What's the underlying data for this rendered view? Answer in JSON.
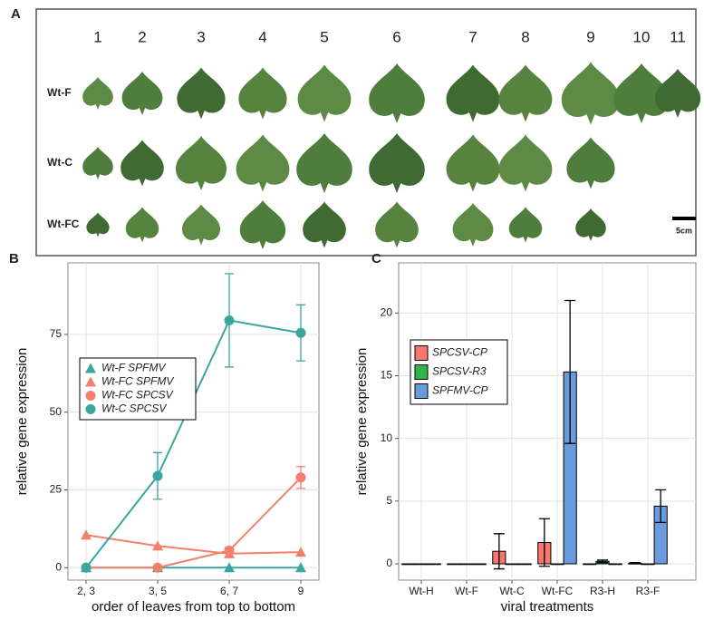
{
  "panel_a": {
    "label": "A",
    "columns": [
      "1",
      "2",
      "3",
      "4",
      "5",
      "6",
      "7",
      "8",
      "9",
      "10",
      "11"
    ],
    "rows": [
      "Wt-F",
      "Wt-C",
      "Wt-FC"
    ],
    "scale": "5cm"
  },
  "chart_data": [
    {
      "type": "line",
      "panel_label": "B",
      "x_label": "order of leaves from top to bottom",
      "y_label": "relative gene expression",
      "categories": [
        "2, 3",
        "3, 5",
        "6, 7",
        "9"
      ],
      "ylim": [
        -4,
        98
      ],
      "yticks": [
        0,
        25,
        50,
        75
      ],
      "grid": true,
      "legend": "upper-left",
      "series": [
        {
          "name": "Wt-F SPFMV",
          "color": "#3aa6a0",
          "marker": "triangle",
          "values": [
            0,
            0,
            0,
            0
          ]
        },
        {
          "name": "Wt-FC SPFMV",
          "color": "#f47f6b",
          "marker": "triangle",
          "values": [
            10.5,
            7,
            4.5,
            5
          ]
        },
        {
          "name": "Wt-FC SPCSV",
          "color": "#f47f6b",
          "marker": "circle",
          "values": [
            0,
            0,
            5.5,
            29
          ],
          "errors": [
            null,
            null,
            1,
            3.5
          ]
        },
        {
          "name": "Wt-C SPCSV",
          "color": "#3aa6a0",
          "marker": "circle",
          "values": [
            0,
            29.5,
            79.5,
            75.5
          ],
          "errors": [
            null,
            7.5,
            15,
            9
          ]
        }
      ]
    },
    {
      "type": "bar",
      "panel_label": "C",
      "x_label": "viral treatments",
      "y_label": "relative gene expression",
      "categories": [
        "Wt-H",
        "Wt-F",
        "Wt-C",
        "Wt-FC",
        "R3-H",
        "R3-F"
      ],
      "ylim": [
        -1.3,
        24
      ],
      "yticks": [
        0,
        5,
        10,
        15,
        20
      ],
      "grid": true,
      "legend": "upper-left",
      "series": [
        {
          "name": "SPCSV-CP",
          "color": "#f8766d",
          "values": [
            0,
            0,
            1,
            1.7,
            0,
            0.05
          ],
          "errors": [
            null,
            null,
            1.4,
            1.9,
            null,
            0.05
          ]
        },
        {
          "name": "SPCSV-R3",
          "color": "#2fb34a",
          "values": [
            0,
            0,
            0,
            0,
            0.2,
            0
          ],
          "errors": [
            null,
            null,
            null,
            null,
            0.1,
            null
          ]
        },
        {
          "name": "SPFMV-CP",
          "color": "#6a9ade",
          "values": [
            0,
            0,
            0,
            15.3,
            0,
            4.6
          ],
          "errors": [
            null,
            null,
            null,
            5.7,
            null,
            1.3
          ]
        }
      ]
    }
  ]
}
